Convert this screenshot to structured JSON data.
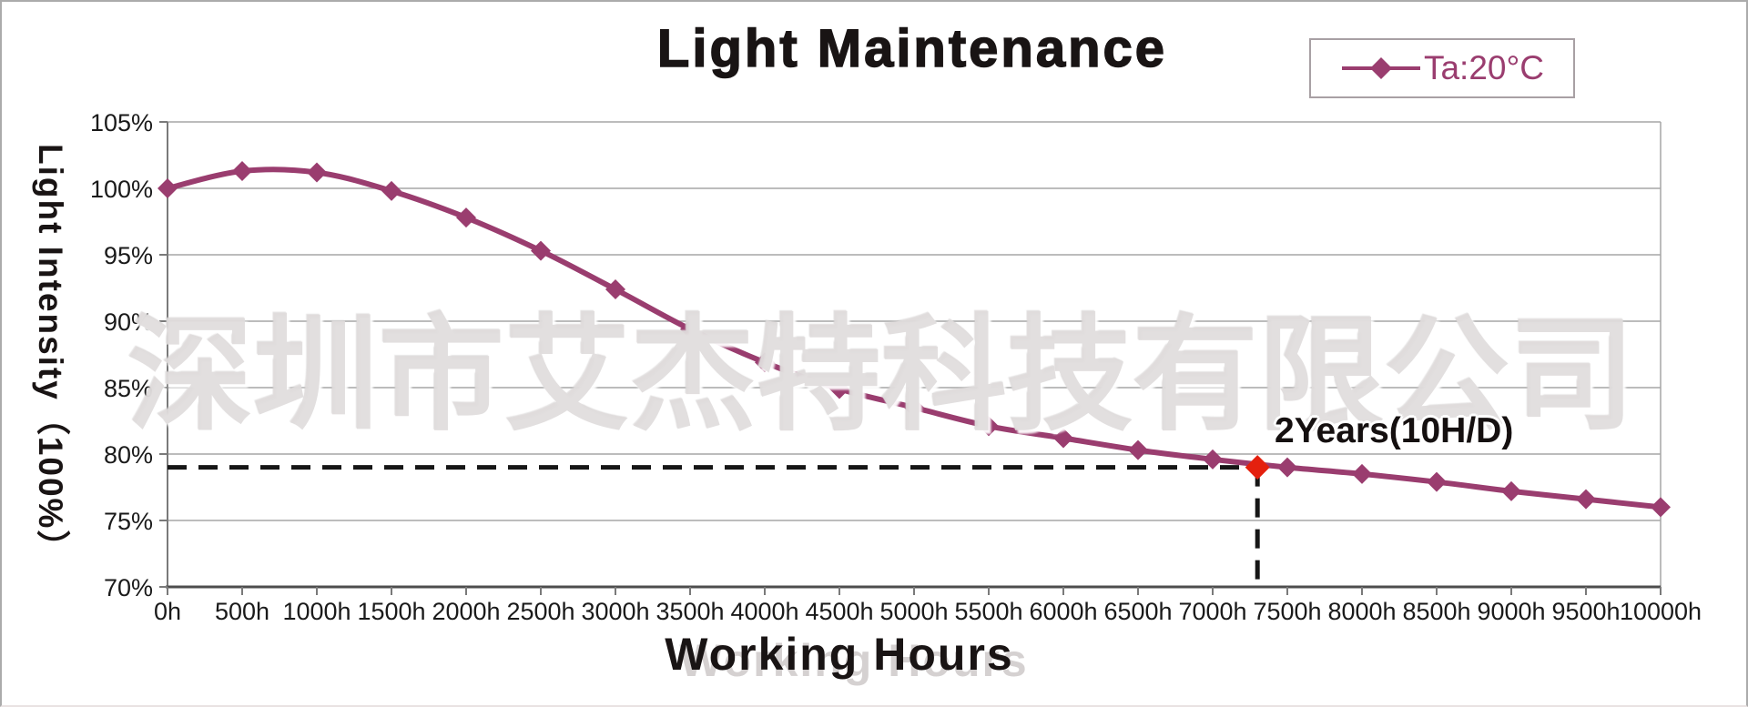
{
  "watermark": {
    "text": "深圳市艾杰特科技有限公司"
  },
  "colors": {
    "series": "#9a3d6f",
    "annotation_marker": "#e4200e",
    "dashed_line": "#161616",
    "grid": "#a6a6a6",
    "axis": "#4d4d4d",
    "tick": "#7a7a7a",
    "text": "#1a1a1a",
    "title": "#191414",
    "legend_border": "#a8a0a4",
    "watermark": "rgba(223,220,220,0.9)"
  },
  "chart_data": {
    "type": "line",
    "title": "Light Maintenance",
    "xlabel": "Working Hours",
    "ylabel": "Light Intensity（100%）",
    "grid": true,
    "legend_position": "top-right",
    "smooth_line": true,
    "marker": "diamond",
    "xlim_hours": [
      0,
      10000
    ],
    "ylim": [
      70,
      105
    ],
    "x": [
      0,
      500,
      1000,
      1500,
      2000,
      2500,
      3000,
      3500,
      4000,
      4500,
      5000,
      5500,
      6000,
      6500,
      7000,
      7500,
      8000,
      8500,
      9000,
      9500,
      10000
    ],
    "x_tick_labels": [
      "0h",
      "500h",
      "1000h",
      "1500h",
      "2000h",
      "2500h",
      "3000h",
      "3500h",
      "4000h",
      "4500h",
      "5000h",
      "5500h",
      "6000h",
      "6500h",
      "7000h",
      "7500h",
      "8000h",
      "8500h",
      "9000h",
      "9500h",
      "10000h"
    ],
    "y_ticks": [
      105,
      100,
      95,
      90,
      85,
      80,
      75,
      70
    ],
    "y_tick_labels": [
      "105%",
      "100%",
      "95%",
      "90%",
      "85%",
      "80%",
      "75%",
      "70%"
    ],
    "series": [
      {
        "name": "Ta:20°C",
        "color": "#9a3d6f",
        "values": [
          100.0,
          101.3,
          101.2,
          99.8,
          97.8,
          95.3,
          92.4,
          89.4,
          86.9,
          84.9,
          83.5,
          82.1,
          81.2,
          80.3,
          79.6,
          79.0,
          78.5,
          77.9,
          77.2,
          76.6,
          76.0
        ]
      }
    ],
    "annotation": {
      "label": "2Years(10H/D)",
      "x_hours": 7300,
      "y_percent": 79.0,
      "marker_color": "#e4200e",
      "dashed_guides": true
    }
  }
}
